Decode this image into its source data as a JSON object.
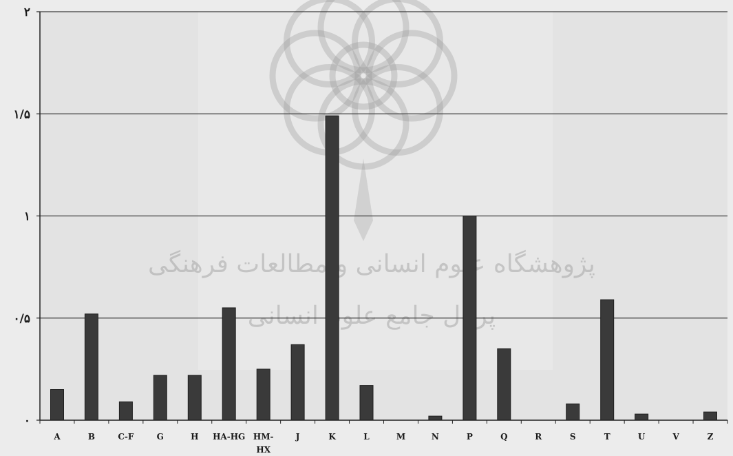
{
  "chart_data": {
    "type": "bar",
    "categories": [
      "A",
      "B",
      "C-F",
      "G",
      "H",
      "HA-HG",
      "HM-HX",
      "J",
      "K",
      "L",
      "M",
      "N",
      "P",
      "Q",
      "R",
      "S",
      "T",
      "U",
      "V",
      "Z"
    ],
    "category_labels": [
      [
        "A"
      ],
      [
        "B"
      ],
      [
        "C-F"
      ],
      [
        "G"
      ],
      [
        "H"
      ],
      [
        "HA-HG"
      ],
      [
        "HM-",
        "HX"
      ],
      [
        "J"
      ],
      [
        "K"
      ],
      [
        "L"
      ],
      [
        "M"
      ],
      [
        "N"
      ],
      [
        "P"
      ],
      [
        "Q"
      ],
      [
        "R"
      ],
      [
        "S"
      ],
      [
        "T"
      ],
      [
        "U"
      ],
      [
        "V"
      ],
      [
        "Z"
      ]
    ],
    "values": [
      0.15,
      0.52,
      0.09,
      0.22,
      0.22,
      0.55,
      0.25,
      0.37,
      1.49,
      0.17,
      0.0,
      0.02,
      1.0,
      0.35,
      0.0,
      0.08,
      0.59,
      0.03,
      0.0,
      0.04
    ],
    "ylim": [
      0,
      2
    ],
    "yticks": [
      0,
      0.5,
      1,
      1.5,
      2
    ],
    "ytick_labels": [
      "٠",
      "٠/۵",
      "١",
      "١/۵",
      "٢"
    ],
    "grid": true,
    "xlabel": "",
    "ylabel": "",
    "title": "",
    "colors": {
      "bar": "#3a3a3a",
      "bar_edge": "#1e1e1e",
      "plot_bg": "#e3e3e3",
      "page_bg": "#ececec",
      "grid": "#3c3c3c",
      "watermark": "#9a9a9a"
    }
  },
  "watermark": {
    "line1": "پژوهشگاه علوم انسانی و مطالعات فرهنگی",
    "line2": "پرتال جامع علوم انسانی"
  }
}
